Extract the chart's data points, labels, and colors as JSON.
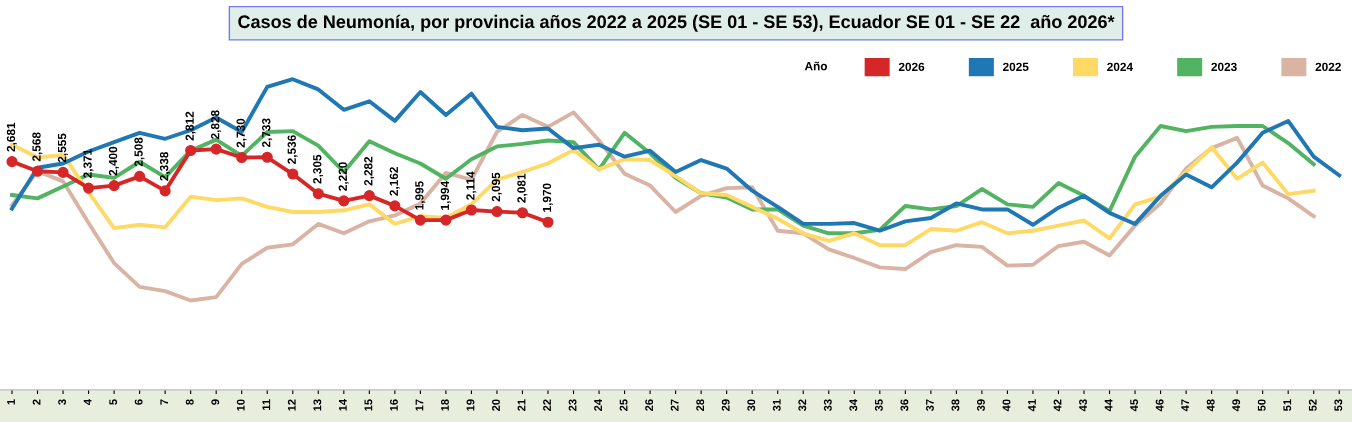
{
  "chart_data": {
    "type": "line",
    "title": "Casos de Neumonía, por provincia años 2022 a 2025 (SE 01 - SE 53), Ecuador SE 01 - SE 22  año 2026*",
    "categories": [
      "1",
      "2",
      "3",
      "4",
      "5",
      "6",
      "7",
      "8",
      "9",
      "10",
      "11",
      "12",
      "13",
      "14",
      "15",
      "16",
      "17",
      "18",
      "19",
      "20",
      "21",
      "22",
      "23",
      "24",
      "25",
      "26",
      "27",
      "28",
      "29",
      "30",
      "31",
      "32",
      "33",
      "34",
      "35",
      "36",
      "37",
      "38",
      "39",
      "40",
      "41",
      "42",
      "43",
      "44",
      "45",
      "46",
      "47",
      "48",
      "49",
      "50",
      "51",
      "52",
      "53"
    ],
    "tick_labels": "x",
    "grid": false,
    "legend": "top right",
    "legend_title": "Año",
    "series": [
      {
        "name": "2026",
        "color": "#d62728",
        "marker": "circle",
        "values": [
          2681,
          2568,
          2555,
          2371,
          2400,
          2508,
          2338,
          2812,
          2828,
          2730,
          2733,
          2536,
          2305,
          2220,
          2282,
          2162,
          1995,
          1994,
          2114,
          2095,
          2081,
          1970,
          null,
          null,
          null,
          null,
          null,
          null,
          null,
          null,
          null,
          null,
          null,
          null,
          null,
          null,
          null,
          null,
          null,
          null,
          null,
          null,
          null,
          null,
          null,
          null,
          null,
          null,
          null,
          null,
          null,
          null,
          null
        ],
        "value_labels": [
          "2,681",
          "2,568",
          "2,555",
          "2,371",
          "2,400",
          "2,508",
          "2,338",
          "2,812",
          "2,828",
          "2,730",
          "2,733",
          "2,536",
          "2,305",
          "2,220",
          "2,282",
          "2,162",
          "1,995",
          "1,994",
          "2,114",
          "2,095",
          "2,081",
          "1,970",
          null,
          null,
          null,
          null,
          null,
          null,
          null,
          null,
          null,
          null,
          null,
          null,
          null,
          null,
          null,
          null,
          null,
          null,
          null,
          null,
          null,
          null,
          null,
          null,
          null,
          null,
          null,
          null,
          null,
          null,
          null
        ]
      },
      {
        "name": "2025",
        "color": "#1f77b4",
        "marker": "none",
        "values": [
          2130,
          2610,
          2660,
          2800,
          2910,
          3020,
          2950,
          3050,
          3200,
          3030,
          3560,
          3650,
          3530,
          3290,
          3390,
          3160,
          3500,
          3230,
          3480,
          3090,
          3050,
          3070,
          2840,
          2880,
          2740,
          2810,
          2560,
          2700,
          2600,
          2340,
          2150,
          1950,
          1950,
          1960,
          1870,
          1980,
          2020,
          2190,
          2120,
          2120,
          1940,
          2140,
          2280,
          2080,
          1950,
          2280,
          2530,
          2380,
          2670,
          3020,
          3160,
          2740,
          2520
        ]
      },
      {
        "name": "2024",
        "color": "#ffd966",
        "marker": "none",
        "values": [
          2880,
          2730,
          2760,
          2320,
          1900,
          1940,
          1910,
          2270,
          2230,
          2250,
          2150,
          2090,
          2090,
          2110,
          2180,
          1950,
          2040,
          2020,
          2180,
          2470,
          2560,
          2660,
          2820,
          2590,
          2710,
          2700,
          2510,
          2310,
          2290,
          2150,
          2010,
          1840,
          1750,
          1840,
          1700,
          1700,
          1890,
          1870,
          1970,
          1840,
          1870,
          1930,
          1990,
          1780,
          2180,
          2270,
          2560,
          2850,
          2480,
          2670,
          2300,
          2340,
          null
        ]
      },
      {
        "name": "2023",
        "color": "#52b462",
        "marker": "none",
        "values": [
          2290,
          2250,
          2390,
          2530,
          2490,
          2680,
          2500,
          2810,
          2940,
          2750,
          3030,
          3040,
          2870,
          2560,
          2920,
          2780,
          2660,
          2480,
          2710,
          2860,
          2890,
          2930,
          2910,
          2590,
          3020,
          2780,
          2490,
          2310,
          2260,
          2120,
          2120,
          1930,
          1840,
          1840,
          1880,
          2160,
          2120,
          2160,
          2360,
          2180,
          2150,
          2430,
          2280,
          2100,
          2740,
          3100,
          3040,
          3090,
          3100,
          3100,
          2900,
          2650,
          null
        ]
      },
      {
        "name": "2022",
        "color": "#d9b4a4",
        "marker": "none",
        "values": [
          2170,
          2570,
          2450,
          1960,
          1490,
          1210,
          1160,
          1050,
          1090,
          1480,
          1670,
          1710,
          1950,
          1840,
          1980,
          2050,
          2190,
          2550,
          2470,
          3030,
          3230,
          3090,
          3260,
          2930,
          2540,
          2400,
          2090,
          2280,
          2370,
          2380,
          1870,
          1840,
          1650,
          1550,
          1440,
          1420,
          1620,
          1700,
          1680,
          1460,
          1470,
          1690,
          1740,
          1580,
          1930,
          2190,
          2600,
          2840,
          2960,
          2400,
          2250,
          2040,
          null
        ]
      }
    ]
  }
}
